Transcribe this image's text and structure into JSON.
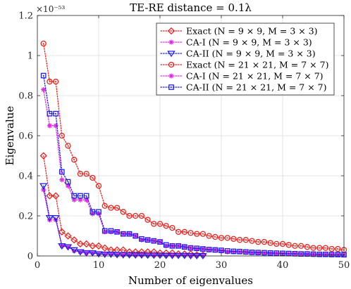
{
  "chart_data": {
    "type": "line",
    "title": "TE-RE distance = 0.1λ",
    "xlabel": "Number of eigenvalues",
    "ylabel": "Eigenvalue",
    "y_multiplier_label": "×10⁻⁵³",
    "xlim": [
      0,
      50
    ],
    "ylim": [
      0,
      1.2
    ],
    "xticks": [
      0,
      10,
      20,
      30,
      40,
      50
    ],
    "yticks": [
      0,
      0.2,
      0.4,
      0.6,
      0.8,
      1.0,
      1.2
    ],
    "ytick_labels": [
      "0",
      "0.2",
      "0.4",
      "0.6",
      "0.8",
      "1",
      "1.2"
    ],
    "grid": true,
    "legend_position": "top-right",
    "series": [
      {
        "name": "Exact (N = 9 × 9, M = 3 × 3)",
        "color": "#e8231f",
        "line_style": "dotted",
        "marker": "diamond",
        "x": [
          1,
          2,
          3,
          4,
          5,
          6,
          7,
          8,
          9,
          10,
          11,
          12,
          13,
          14,
          15,
          16,
          17,
          18,
          19,
          20,
          21,
          22,
          23,
          24,
          25,
          26,
          27
        ],
        "y": [
          0.5,
          0.3,
          0.3,
          0.12,
          0.1,
          0.08,
          0.06,
          0.06,
          0.05,
          0.05,
          0.04,
          0.03,
          0.03,
          0.03,
          0.02,
          0.02,
          0.02,
          0.02,
          0.02,
          0.015,
          0.015,
          0.015,
          0.01,
          0.01,
          0.01,
          0.005,
          0.005
        ]
      },
      {
        "name": "CA-I (N = 9 × 9, M = 3 × 3)",
        "color": "#e626e6",
        "line_style": "dotted",
        "marker": "star",
        "x": [
          1,
          2,
          3,
          4,
          5,
          6,
          7,
          8,
          9,
          10,
          11,
          12,
          13,
          14,
          15,
          16,
          17,
          18,
          19,
          20,
          21,
          22,
          23,
          24,
          25,
          26,
          27
        ],
        "y": [
          0.33,
          0.18,
          0.18,
          0.05,
          0.045,
          0.025,
          0.02,
          0.015,
          0.015,
          0.01,
          0.008,
          0.008,
          0.006,
          0.005,
          0.005,
          0.004,
          0.004,
          0.003,
          0.003,
          0.003,
          0.002,
          0.002,
          0.002,
          0.002,
          0.001,
          0.001,
          0.001
        ]
      },
      {
        "name": "CA-II (N = 9 × 9, M = 3 × 3)",
        "color": "#1f1fe6",
        "line_style": "dotted",
        "marker": "triangle-down",
        "x": [
          1,
          2,
          3,
          4,
          5,
          6,
          7,
          8,
          9,
          10,
          11,
          12,
          13,
          14,
          15,
          16,
          17,
          18,
          19,
          20,
          21,
          22,
          23,
          24,
          25,
          26,
          27
        ],
        "y": [
          0.35,
          0.19,
          0.19,
          0.05,
          0.045,
          0.03,
          0.02,
          0.015,
          0.015,
          0.01,
          0.008,
          0.008,
          0.006,
          0.005,
          0.005,
          0.004,
          0.004,
          0.003,
          0.003,
          0.003,
          0.002,
          0.002,
          0.002,
          0.002,
          0.001,
          0.001,
          0.001
        ]
      },
      {
        "name": "Exact (N = 21 × 21, M = 7 × 7)",
        "color": "#e8231f",
        "line_style": "dotted",
        "marker": "circle",
        "x": [
          1,
          2,
          3,
          4,
          5,
          6,
          7,
          8,
          9,
          10,
          11,
          12,
          13,
          14,
          15,
          16,
          17,
          18,
          19,
          20,
          21,
          22,
          23,
          24,
          25,
          26,
          27,
          28,
          29,
          30,
          31,
          32,
          33,
          34,
          35,
          36,
          37,
          38,
          39,
          40,
          41,
          42,
          43,
          44,
          45,
          46,
          47,
          48,
          49,
          50
        ],
        "y": [
          1.06,
          0.87,
          0.87,
          0.6,
          0.55,
          0.48,
          0.41,
          0.41,
          0.39,
          0.35,
          0.25,
          0.24,
          0.24,
          0.22,
          0.2,
          0.2,
          0.2,
          0.18,
          0.16,
          0.16,
          0.15,
          0.14,
          0.12,
          0.12,
          0.115,
          0.11,
          0.11,
          0.1,
          0.095,
          0.09,
          0.09,
          0.085,
          0.08,
          0.08,
          0.075,
          0.07,
          0.07,
          0.065,
          0.06,
          0.06,
          0.055,
          0.05,
          0.05,
          0.045,
          0.04,
          0.04,
          0.04,
          0.035,
          0.035,
          0.03
        ]
      },
      {
        "name": "CA-I (N = 21 × 21, M = 7 × 7)",
        "color": "#e626e6",
        "line_style": "dotted",
        "marker": "star",
        "x": [
          1,
          2,
          3,
          4,
          5,
          6,
          7,
          8,
          9,
          10,
          11,
          12,
          13,
          14,
          15,
          16,
          17,
          18,
          19,
          20,
          21,
          22,
          23,
          24,
          25,
          26,
          27,
          28,
          29,
          30,
          31,
          32,
          33,
          34,
          35,
          36,
          37,
          38,
          39,
          40,
          41,
          42,
          43,
          44,
          45,
          46,
          47,
          48,
          49,
          50
        ],
        "y": [
          0.83,
          0.65,
          0.65,
          0.38,
          0.35,
          0.28,
          0.28,
          0.28,
          0.21,
          0.21,
          0.12,
          0.12,
          0.12,
          0.11,
          0.11,
          0.1,
          0.08,
          0.08,
          0.075,
          0.07,
          0.05,
          0.05,
          0.05,
          0.045,
          0.04,
          0.035,
          0.035,
          0.03,
          0.03,
          0.025,
          0.02,
          0.02,
          0.02,
          0.018,
          0.016,
          0.015,
          0.014,
          0.013,
          0.012,
          0.011,
          0.01,
          0.01,
          0.009,
          0.008,
          0.008,
          0.007,
          0.007,
          0.006,
          0.006,
          0.005
        ]
      },
      {
        "name": "CA-II (N = 21 × 21, M = 7 × 7)",
        "color": "#1f1fe6",
        "line_style": "dotted",
        "marker": "square",
        "x": [
          1,
          2,
          3,
          4,
          5,
          6,
          7,
          8,
          9,
          10,
          11,
          12,
          13,
          14,
          15,
          16,
          17,
          18,
          19,
          20,
          21,
          22,
          23,
          24,
          25,
          26,
          27,
          28,
          29,
          30,
          31,
          32,
          33,
          34,
          35,
          36,
          37,
          38,
          39,
          40,
          41,
          42,
          43,
          44,
          45,
          46,
          47,
          48,
          49,
          50
        ],
        "y": [
          0.9,
          0.71,
          0.71,
          0.42,
          0.37,
          0.3,
          0.3,
          0.3,
          0.22,
          0.22,
          0.125,
          0.125,
          0.12,
          0.11,
          0.11,
          0.1,
          0.085,
          0.08,
          0.075,
          0.07,
          0.055,
          0.05,
          0.05,
          0.045,
          0.04,
          0.038,
          0.035,
          0.032,
          0.03,
          0.028,
          0.025,
          0.023,
          0.022,
          0.02,
          0.018,
          0.017,
          0.016,
          0.015,
          0.014,
          0.013,
          0.012,
          0.011,
          0.01,
          0.01,
          0.009,
          0.008,
          0.008,
          0.007,
          0.007,
          0.006
        ]
      }
    ]
  }
}
